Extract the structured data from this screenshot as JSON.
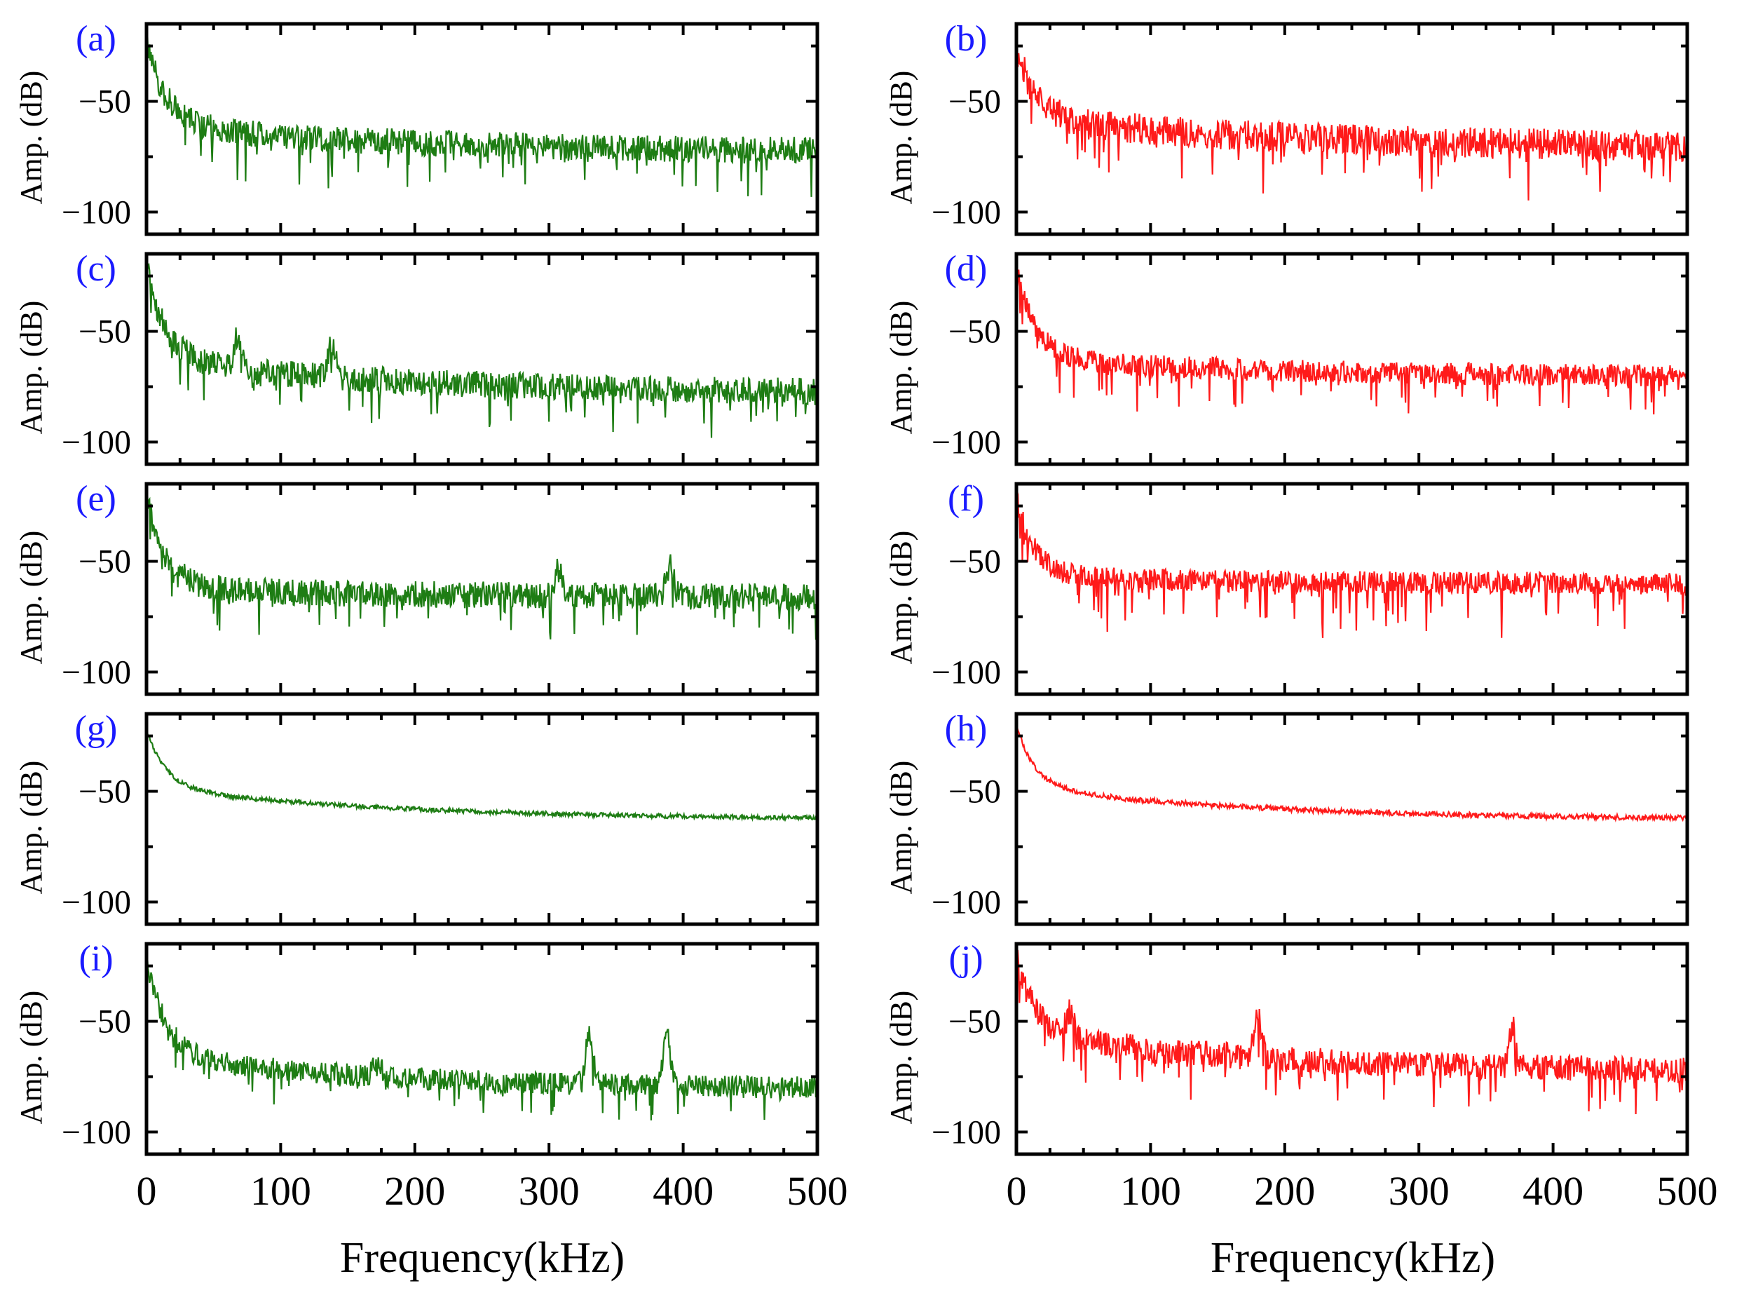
{
  "chart_data": {
    "type": "line",
    "layout": "5x2 grid of spectra",
    "xlabel": "Frequency(kHz)",
    "ylabel": "Amp. (dB)",
    "xlim": [
      0,
      500
    ],
    "ylim": [
      -110,
      -15
    ],
    "xticks": [
      0,
      100,
      200,
      300,
      400,
      500
    ],
    "yticks": [
      -50,
      -100
    ],
    "ytick_labels": [
      "−50",
      "−100"
    ],
    "colors": {
      "left": "#1e7d14",
      "right": "#ff1a1a",
      "panel_label": "#1a1aff"
    },
    "panels": [
      {
        "label": "(a)",
        "color": "#1e7d14",
        "description": "noisy spectrum",
        "start": -22,
        "knee": -60,
        "end": -72,
        "noise": 6,
        "spike_depth": 18,
        "seed": 11,
        "peaks": []
      },
      {
        "label": "(b)",
        "color": "#ff1a1a",
        "description": "noisy spectrum",
        "start": -25,
        "knee": -57,
        "end": -70,
        "noise": 7,
        "spike_depth": 20,
        "seed": 12,
        "peaks": []
      },
      {
        "label": "(c)",
        "color": "#1e7d14",
        "description": "noisy spectrum with spurs",
        "start": -20,
        "knee": -62,
        "end": -77,
        "noise": 6,
        "spike_depth": 18,
        "seed": 13,
        "peaks": [
          [
            68,
            -52
          ],
          [
            138,
            -56
          ]
        ]
      },
      {
        "label": "(d)",
        "color": "#ff1a1a",
        "description": "noisy spectrum",
        "start": -20,
        "knee": -62,
        "end": -70,
        "noise": 5,
        "spike_depth": 20,
        "seed": 14,
        "peaks": []
      },
      {
        "label": "(e)",
        "color": "#1e7d14",
        "description": "noisy spectrum",
        "start": -20,
        "knee": -62,
        "end": -66,
        "noise": 6,
        "spike_depth": 16,
        "seed": 15,
        "peaks": [
          [
            307,
            -54
          ],
          [
            390,
            -52
          ]
        ]
      },
      {
        "label": "(f)",
        "color": "#ff1a1a",
        "description": "noisy spectrum",
        "start": -22,
        "knee": -57,
        "end": -60,
        "noise": 5,
        "spike_depth": 22,
        "seed": 16,
        "peaks": []
      },
      {
        "label": "(g)",
        "color": "#1e7d14",
        "description": "smooth decaying spectrum",
        "start": -22,
        "knee": -48,
        "end": -62,
        "noise": 1,
        "spike_depth": 0,
        "seed": 17,
        "peaks": []
      },
      {
        "label": "(h)",
        "color": "#ff1a1a",
        "description": "smooth decaying spectrum",
        "start": -20,
        "knee": -48,
        "end": -62,
        "noise": 1.2,
        "spike_depth": 0,
        "seed": 18,
        "peaks": []
      },
      {
        "label": "(i)",
        "color": "#1e7d14",
        "description": "noisy spectrum with resonances",
        "start": -20,
        "knee": -65,
        "end": -80,
        "noise": 5,
        "spike_depth": 14,
        "seed": 19,
        "peaks": [
          [
            172,
            -68
          ],
          [
            330,
            -57
          ],
          [
            388,
            -57
          ]
        ]
      },
      {
        "label": "(j)",
        "color": "#ff1a1a",
        "description": "modulated noisy spectrum",
        "start": -22,
        "knee": -55,
        "end": -72,
        "noise": 6,
        "spike_depth": 18,
        "seed": 20,
        "peaks": [
          [
            40,
            -45
          ],
          [
            180,
            -48
          ],
          [
            370,
            -52
          ]
        ]
      }
    ]
  }
}
